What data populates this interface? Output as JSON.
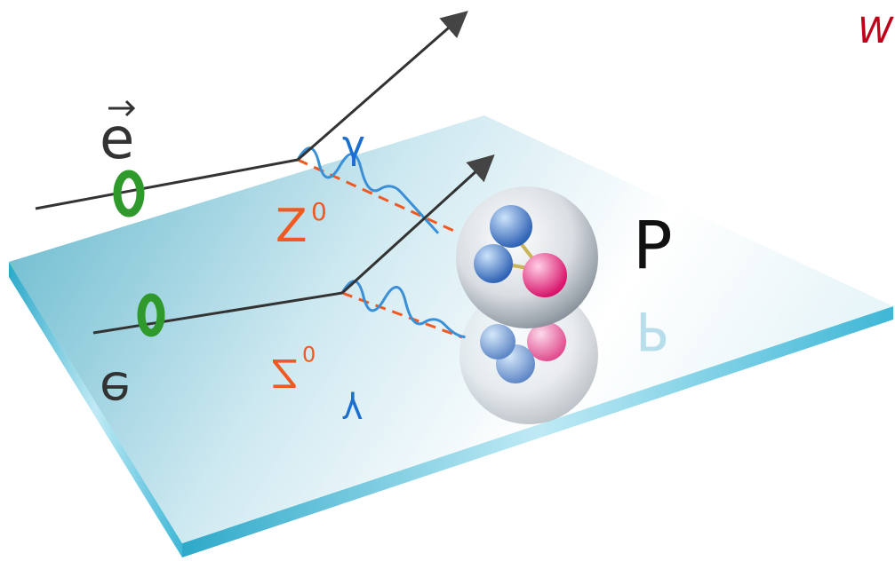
{
  "labels": {
    "electron": "e",
    "photon": "γ",
    "z_boson": "Z",
    "z_superscript": "0",
    "proton": "P",
    "corner": "W"
  }
}
